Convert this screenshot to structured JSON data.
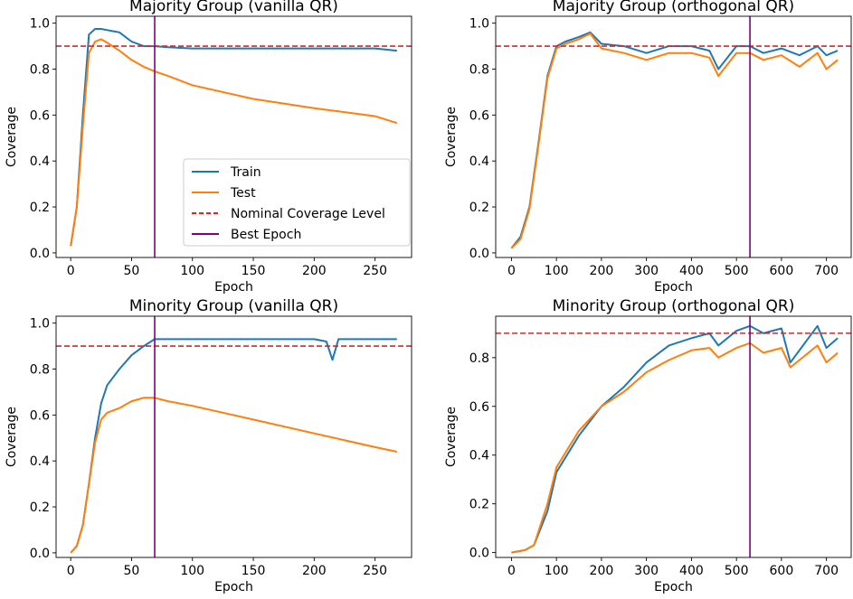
{
  "colors": {
    "train": "#1f77b4",
    "test": "#ff7f0e",
    "nominal": "#d62728",
    "best": "#800080"
  },
  "legend": {
    "placement": "lower right of top-left panel",
    "entries": [
      {
        "label": "Train",
        "color": "#1f77b4",
        "style": "solid"
      },
      {
        "label": "Test",
        "color": "#ff7f0e",
        "style": "solid"
      },
      {
        "label": "Nominal Coverage Level",
        "color": "#d62728",
        "style": "dashed"
      },
      {
        "label": "Best Epoch",
        "color": "#800080",
        "style": "solid"
      }
    ]
  },
  "chart_data": [
    {
      "type": "line",
      "title": "Majority Group (vanilla QR)",
      "xlabel": "Epoch",
      "ylabel": "Coverage",
      "xlim": [
        -12,
        280
      ],
      "ylim": [
        -0.02,
        1.03
      ],
      "xticks": [
        0,
        50,
        100,
        150,
        200,
        250
      ],
      "yticks": [
        0.0,
        0.2,
        0.4,
        0.6,
        0.8,
        1.0
      ],
      "nominal_coverage": 0.9,
      "best_epoch": 69,
      "series": [
        {
          "name": "Train",
          "x": [
            0,
            5,
            10,
            15,
            20,
            25,
            30,
            40,
            50,
            60,
            69,
            80,
            100,
            150,
            200,
            250,
            268
          ],
          "y": [
            0.03,
            0.2,
            0.6,
            0.95,
            0.975,
            0.975,
            0.97,
            0.96,
            0.92,
            0.9,
            0.9,
            0.895,
            0.89,
            0.89,
            0.89,
            0.89,
            0.88
          ]
        },
        {
          "name": "Test",
          "x": [
            0,
            5,
            10,
            15,
            20,
            25,
            30,
            40,
            50,
            60,
            69,
            80,
            100,
            150,
            200,
            250,
            268
          ],
          "y": [
            0.03,
            0.2,
            0.55,
            0.87,
            0.92,
            0.93,
            0.915,
            0.88,
            0.84,
            0.81,
            0.79,
            0.77,
            0.73,
            0.67,
            0.63,
            0.595,
            0.565
          ]
        }
      ]
    },
    {
      "type": "line",
      "title": "Majority Group (orthogonal QR)",
      "xlabel": "Epoch",
      "ylabel": "Coverage",
      "xlim": [
        -35,
        755
      ],
      "ylim": [
        -0.02,
        1.03
      ],
      "xticks": [
        0,
        100,
        200,
        300,
        400,
        500,
        600,
        700
      ],
      "yticks": [
        0.0,
        0.2,
        0.4,
        0.6,
        0.8,
        1.0
      ],
      "nominal_coverage": 0.9,
      "best_epoch": 530,
      "series": [
        {
          "name": "Train",
          "x": [
            0,
            20,
            40,
            60,
            80,
            100,
            120,
            150,
            175,
            200,
            250,
            300,
            350,
            400,
            440,
            460,
            500,
            530,
            560,
            600,
            640,
            680,
            700,
            725
          ],
          "y": [
            0.02,
            0.07,
            0.2,
            0.48,
            0.77,
            0.9,
            0.92,
            0.94,
            0.96,
            0.91,
            0.9,
            0.87,
            0.9,
            0.9,
            0.88,
            0.8,
            0.9,
            0.9,
            0.87,
            0.89,
            0.86,
            0.9,
            0.86,
            0.88
          ]
        },
        {
          "name": "Test",
          "x": [
            0,
            20,
            40,
            60,
            80,
            100,
            120,
            150,
            175,
            200,
            250,
            300,
            350,
            400,
            440,
            460,
            500,
            530,
            560,
            600,
            640,
            680,
            700,
            725
          ],
          "y": [
            0.02,
            0.06,
            0.19,
            0.47,
            0.76,
            0.89,
            0.91,
            0.93,
            0.955,
            0.89,
            0.87,
            0.84,
            0.87,
            0.87,
            0.85,
            0.77,
            0.87,
            0.87,
            0.84,
            0.86,
            0.81,
            0.87,
            0.8,
            0.84
          ]
        }
      ]
    },
    {
      "type": "line",
      "title": "Minority Group (vanilla QR)",
      "xlabel": "Epoch",
      "ylabel": "Coverage",
      "xlim": [
        -12,
        280
      ],
      "ylim": [
        -0.02,
        1.03
      ],
      "xticks": [
        0,
        50,
        100,
        150,
        200,
        250
      ],
      "yticks": [
        0.0,
        0.2,
        0.4,
        0.6,
        0.8,
        1.0
      ],
      "nominal_coverage": 0.9,
      "best_epoch": 69,
      "series": [
        {
          "name": "Train",
          "x": [
            0,
            5,
            10,
            15,
            20,
            25,
            30,
            40,
            50,
            60,
            69,
            80,
            100,
            150,
            200,
            210,
            215,
            220,
            250,
            268
          ],
          "y": [
            0.0,
            0.03,
            0.12,
            0.3,
            0.5,
            0.65,
            0.73,
            0.8,
            0.86,
            0.9,
            0.93,
            0.93,
            0.93,
            0.93,
            0.93,
            0.92,
            0.84,
            0.93,
            0.93,
            0.93
          ]
        },
        {
          "name": "Test",
          "x": [
            0,
            5,
            10,
            15,
            20,
            25,
            30,
            40,
            50,
            60,
            69,
            80,
            100,
            150,
            200,
            250,
            268
          ],
          "y": [
            0.0,
            0.03,
            0.12,
            0.3,
            0.48,
            0.58,
            0.61,
            0.63,
            0.66,
            0.675,
            0.675,
            0.66,
            0.64,
            0.58,
            0.52,
            0.46,
            0.44
          ]
        }
      ]
    },
    {
      "type": "line",
      "title": "Minority Group (orthogonal QR)",
      "xlabel": "Epoch",
      "ylabel": "Coverage",
      "xlim": [
        -35,
        755
      ],
      "ylim": [
        -0.02,
        0.97
      ],
      "xticks": [
        0,
        100,
        200,
        300,
        400,
        500,
        600,
        700
      ],
      "yticks": [
        0.0,
        0.2,
        0.4,
        0.6,
        0.8
      ],
      "nominal_coverage": 0.9,
      "best_epoch": 530,
      "series": [
        {
          "name": "Train",
          "x": [
            0,
            30,
            50,
            80,
            100,
            150,
            200,
            250,
            300,
            350,
            400,
            440,
            460,
            500,
            530,
            560,
            600,
            620,
            680,
            700,
            725
          ],
          "y": [
            0.0,
            0.01,
            0.03,
            0.17,
            0.33,
            0.48,
            0.6,
            0.68,
            0.78,
            0.85,
            0.88,
            0.9,
            0.85,
            0.91,
            0.93,
            0.9,
            0.92,
            0.78,
            0.93,
            0.84,
            0.88
          ]
        },
        {
          "name": "Test",
          "x": [
            0,
            30,
            50,
            80,
            100,
            150,
            200,
            250,
            300,
            350,
            400,
            440,
            460,
            500,
            530,
            560,
            600,
            620,
            680,
            700,
            725
          ],
          "y": [
            0.0,
            0.01,
            0.03,
            0.2,
            0.35,
            0.5,
            0.6,
            0.66,
            0.74,
            0.79,
            0.83,
            0.84,
            0.8,
            0.84,
            0.86,
            0.82,
            0.84,
            0.76,
            0.85,
            0.78,
            0.82
          ]
        }
      ]
    }
  ]
}
